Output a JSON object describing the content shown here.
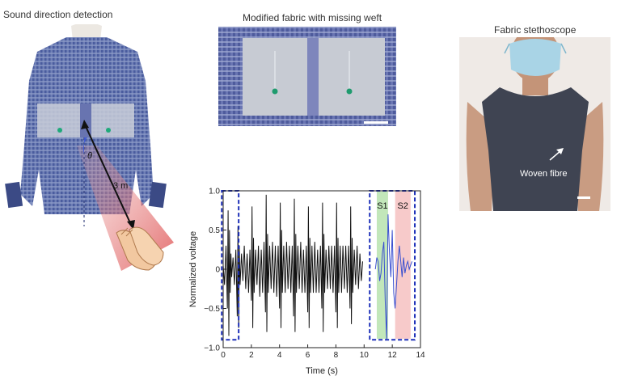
{
  "panels": {
    "sound_direction": {
      "title": "Sound direction detection",
      "theta_label": "θ",
      "distance_label": "3 m"
    },
    "modified_fabric": {
      "title": "Modified fabric with missing weft"
    },
    "stethoscope": {
      "title": "Fabric stethoscope",
      "annotation": "Woven fibre"
    }
  },
  "chart_data": {
    "type": "line",
    "xlabel": "Time (s)",
    "ylabel": "Normalized voltage",
    "xlim": [
      0,
      14
    ],
    "ylim": [
      -1.0,
      1.0
    ],
    "xticks": [
      0,
      2,
      4,
      6,
      8,
      10,
      12,
      14
    ],
    "yticks": [
      -1.0,
      -0.5,
      0,
      0.5,
      1.0
    ],
    "ytick_labels": [
      "−1.0",
      "−0.5",
      "0",
      "0.5",
      "1.0"
    ],
    "series": [
      {
        "color": "#111111",
        "x": [
          0.0,
          0.1,
          0.2,
          0.3,
          0.35,
          0.4,
          0.45,
          0.5,
          0.55,
          0.6,
          0.7,
          0.8,
          0.9,
          1.0,
          1.05,
          1.1,
          1.15,
          1.2,
          1.3,
          1.4,
          1.5,
          1.6,
          1.7,
          1.8,
          1.9,
          2.0,
          2.05,
          2.1,
          2.15,
          2.2,
          2.3,
          2.4,
          2.5,
          2.6,
          2.7,
          2.8,
          2.9,
          3.0,
          3.05,
          3.1,
          3.15,
          3.2,
          3.3,
          3.4,
          3.5,
          3.6,
          3.7,
          3.8,
          3.9,
          4.0,
          4.05,
          4.1,
          4.15,
          4.2,
          4.3,
          4.4,
          4.5,
          4.6,
          4.7,
          4.8,
          4.9,
          5.0,
          5.05,
          5.1,
          5.15,
          5.2,
          5.3,
          5.4,
          5.5,
          5.6,
          5.7,
          5.8,
          5.9,
          6.0,
          6.05,
          6.1,
          6.15,
          6.2,
          6.3,
          6.4,
          6.5,
          6.6,
          6.7,
          6.8,
          6.9,
          7.0,
          7.05,
          7.1,
          7.15,
          7.2,
          7.3,
          7.4,
          7.5,
          7.6,
          7.7,
          7.8,
          7.9,
          8.0,
          8.05,
          8.1,
          8.15,
          8.2,
          8.3,
          8.4,
          8.5,
          8.6,
          8.7,
          8.8,
          8.9,
          9.0,
          9.05,
          9.1,
          9.15,
          9.2,
          9.3,
          9.4,
          9.5,
          9.6,
          9.7,
          9.8,
          9.9
        ],
        "y": [
          0.05,
          -0.2,
          0.3,
          -0.5,
          0.75,
          -0.85,
          0.5,
          -0.3,
          0.2,
          -0.1,
          0.15,
          -0.2,
          0.25,
          -0.6,
          0.55,
          -0.75,
          0.3,
          -0.2,
          0.2,
          -0.15,
          0.3,
          -0.25,
          0.2,
          -0.3,
          0.25,
          -0.4,
          0.8,
          -0.75,
          0.4,
          -0.3,
          0.25,
          -0.2,
          0.3,
          -0.35,
          0.25,
          -0.3,
          0.35,
          -0.55,
          0.95,
          -0.8,
          0.45,
          -0.3,
          0.3,
          -0.25,
          0.35,
          -0.3,
          0.3,
          -0.35,
          0.3,
          -0.5,
          0.85,
          -0.75,
          0.5,
          -0.3,
          0.3,
          -0.3,
          0.35,
          -0.25,
          0.3,
          -0.3,
          0.3,
          -0.6,
          0.9,
          -0.8,
          0.45,
          -0.3,
          0.3,
          -0.25,
          0.35,
          -0.3,
          0.25,
          -0.3,
          0.3,
          -0.55,
          0.8,
          -0.75,
          0.4,
          -0.3,
          0.3,
          -0.3,
          0.35,
          -0.3,
          0.25,
          -0.3,
          0.3,
          -0.5,
          0.85,
          -0.8,
          0.45,
          -0.3,
          0.25,
          -0.25,
          0.3,
          -0.25,
          0.3,
          -0.3,
          0.3,
          -0.55,
          0.85,
          -0.75,
          0.4,
          -0.3,
          0.3,
          -0.3,
          0.3,
          -0.25,
          0.3,
          -0.3,
          0.3,
          -0.5,
          0.8,
          -0.7,
          0.4,
          -0.3,
          0.25,
          -0.2,
          0.3,
          -0.25,
          0.2,
          -0.15,
          0.1
        ]
      },
      {
        "color": "#3a4fd0",
        "x": [
          10.8,
          10.9,
          11.0,
          11.1,
          11.2,
          11.3,
          11.4,
          11.5,
          11.6,
          11.7,
          11.8,
          11.9,
          12.0,
          12.1,
          12.2,
          12.3,
          12.4,
          12.5,
          12.6,
          12.7,
          12.8,
          12.9,
          13.0,
          13.1,
          13.2,
          13.3,
          13.4
        ],
        "y": [
          0.0,
          0.15,
          0.1,
          -0.15,
          -0.05,
          0.2,
          0.35,
          -0.4,
          -0.9,
          0.7,
          0.2,
          -0.1,
          0.5,
          -0.3,
          -0.5,
          -0.2,
          0.1,
          0.3,
          0.1,
          -0.1,
          0.15,
          -0.05,
          0.05,
          0.1,
          0.0,
          0.05,
          0.1
        ]
      }
    ],
    "regions": [
      {
        "label": "S1",
        "x0": 10.9,
        "x1": 11.7,
        "color": "#b7e3ae"
      },
      {
        "label": "S2",
        "x0": 12.2,
        "x1": 13.3,
        "color": "#f6c1c1"
      }
    ],
    "highlight_boxes": [
      {
        "x0": -0.1,
        "x1": 1.1,
        "y0": -0.9,
        "y1": 1.0
      },
      {
        "x0": 10.4,
        "x1": 13.6,
        "y0": -0.9,
        "y1": 1.0
      }
    ]
  }
}
